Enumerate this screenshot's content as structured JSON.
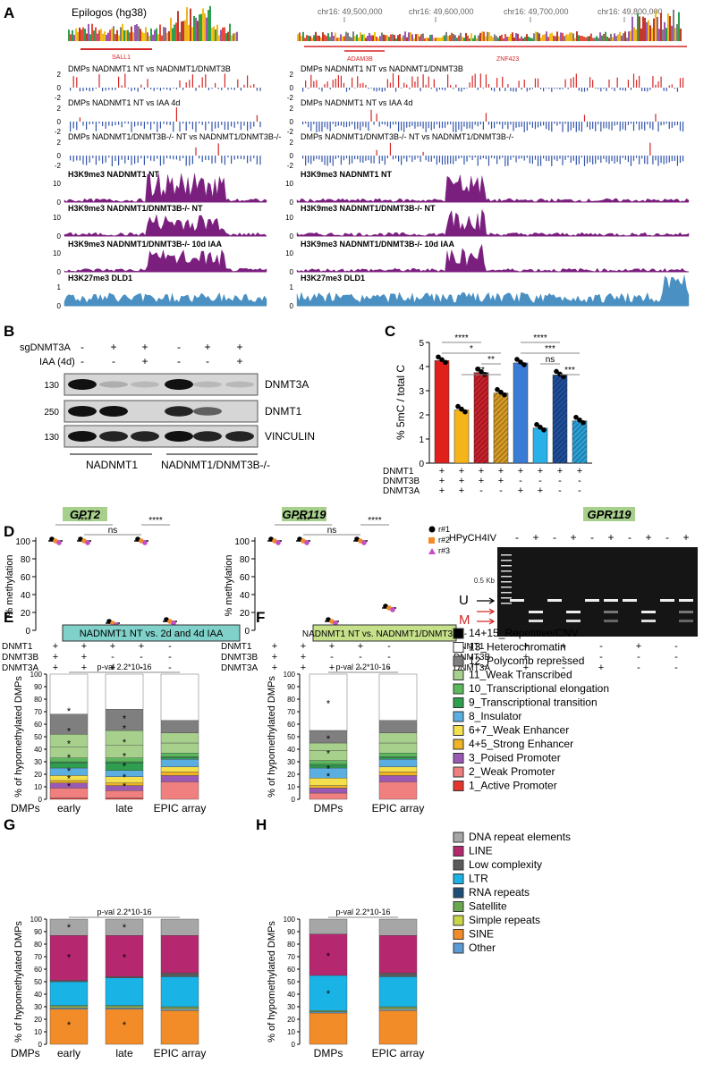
{
  "panel_letters": [
    "A",
    "B",
    "C",
    "D",
    "E",
    "F",
    "G",
    "H"
  ],
  "panelA": {
    "left_title": "Epilogos (hg38)",
    "left_gene": "SALL1",
    "right_genes": [
      "ADAM3B",
      "ZNF423"
    ],
    "coords": [
      "chr16: 49,500,000",
      "chr16: 49,600,000",
      "chr16: 49,700,000",
      "chr16: 49,800,000"
    ],
    "y_ticks": [
      "2",
      "0",
      "-2"
    ],
    "y_one": "1",
    "tracks": [
      {
        "label": "DMPs NADNMT1 NT vs NADNMT1/DNMT3B",
        "color": "#d62728"
      },
      {
        "label": "DMPs NADNMT1 NT vs IAA 4d",
        "color": "#3355aa"
      },
      {
        "label": "DMPs NADNMT1/DNMT3B-/- NT vs NADNMT1/DNMT3B-/-",
        "color": "#3355aa"
      },
      {
        "label": "H3K9me3 NADNMT1 NT",
        "color": "#7b1f7f"
      },
      {
        "label": "H3K9me3 NADNMT1/DNMT3B-/- NT",
        "color": "#7b1f7f"
      },
      {
        "label": "H3K9me3 NADNMT1/DNMT3B-/- 10d IAA",
        "color": "#7b1f7f"
      },
      {
        "label": "H3K27me3 DLD1",
        "color": "#4a90c2"
      }
    ]
  },
  "panelB": {
    "row1_label": "sgDNMT3A",
    "row2_label": "IAA (4d)",
    "row1_signs": [
      "-",
      "+",
      "+",
      "-",
      "+",
      "+"
    ],
    "row2_signs": [
      "-",
      "-",
      "+",
      "-",
      "-",
      "+"
    ],
    "bands": [
      "DNMT3A",
      "DNMT1",
      "VINCULIN"
    ],
    "mw": [
      "130",
      "250",
      "130"
    ],
    "group1": "NADNMT1",
    "group2": "NADNMT1/DNMT3B-/-"
  },
  "panelC": {
    "chart_data": {
      "type": "bar",
      "ylabel": "% 5mC / total C",
      "ylim": [
        0,
        5
      ],
      "yticks": [
        "0",
        "1",
        "2",
        "3",
        "4",
        "5"
      ],
      "values": [
        4.25,
        2.2,
        3.75,
        2.9,
        4.15,
        1.45,
        3.65,
        1.75
      ],
      "colors": [
        "#e0201b",
        "#f5b41a",
        "#c8202a",
        "#d49a24",
        "#3a7bd5",
        "#2ab0e8",
        "#1f4e9a",
        "#2a9fd6"
      ],
      "hatched": [
        false,
        false,
        true,
        true,
        false,
        false,
        true,
        true
      ],
      "rows": [
        {
          "name": "DNMT1",
          "signs": [
            "+",
            "+",
            "+",
            "+",
            "+",
            "+",
            "+",
            "+"
          ]
        },
        {
          "name": "DNMT3B",
          "signs": [
            "+",
            "+",
            "+",
            "+",
            "-",
            "-",
            "-",
            "-"
          ]
        },
        {
          "name": "DNMT3A",
          "signs": [
            "+",
            "+",
            "-",
            "-",
            "+",
            "+",
            "-",
            "-"
          ]
        }
      ],
      "significance": [
        "****",
        "*",
        "**",
        "**",
        "****",
        "***",
        "ns",
        "***"
      ]
    }
  },
  "panelD": {
    "gpt2": {
      "title": "GPT2",
      "chart_data": {
        "type": "scatter",
        "ylabel": "% methylation",
        "ylim": [
          0,
          100
        ],
        "yticks": [
          "0",
          "20",
          "40",
          "60",
          "80",
          "100"
        ],
        "values": [
          100,
          100,
          8,
          100,
          10
        ],
        "significance": [
          "****",
          "ns",
          "****"
        ]
      }
    },
    "gpr119": {
      "title": "GPR119",
      "chart_data": {
        "type": "scatter",
        "ylabel": "% methylation",
        "ylim": [
          0,
          100
        ],
        "yticks": [
          "0",
          "20",
          "40",
          "60",
          "80",
          "100"
        ],
        "values": [
          100,
          100,
          10,
          100,
          25
        ],
        "significance": [
          "****",
          "ns",
          "****"
        ]
      }
    },
    "legend": [
      "r#1",
      "r#2",
      "r#3"
    ],
    "row_names": [
      "DNMT1",
      "DNMT3B",
      "DNMT3A"
    ],
    "row_signs": [
      [
        "+",
        "+",
        "+",
        "+",
        "-"
      ],
      [
        "+",
        "+",
        "-",
        "-",
        "-"
      ],
      [
        "+",
        "+",
        "+",
        "-",
        "-"
      ]
    ],
    "gel": {
      "title": "GPR119",
      "enzyme": "HPyCH4IV",
      "enzyme_signs": [
        "-",
        "+",
        "-",
        "+",
        "-",
        "+",
        "-",
        "+",
        "-",
        "+"
      ],
      "size": "0.5 Kb",
      "U": "U",
      "M": "M",
      "row_names": [
        "DNMT1",
        "DNMT3B",
        "DNMT3A"
      ],
      "row_signs": [
        [
          "+",
          "+",
          "-",
          "+",
          "-"
        ],
        [
          "+",
          "-",
          "-",
          "-",
          "-"
        ],
        [
          "+",
          "-",
          "+",
          "-",
          "-"
        ]
      ]
    }
  },
  "panelE": {
    "header": "NADNMT1 NT vs. 2d and 4d IAA",
    "pval": "p-val 2.2*10-16",
    "ylabel": "% of hypomethylated DMPs",
    "xlabel_prefix": "DMPs",
    "chart_data": {
      "type": "bar",
      "stacked": true,
      "categories": [
        "early",
        "late",
        "EPIC array"
      ],
      "series": [
        [
          1,
          8,
          4,
          2,
          4,
          6,
          4,
          0,
          1,
          3,
          9,
          10,
          16,
          32
        ],
        [
          1,
          6,
          4,
          2,
          5,
          5,
          6,
          0,
          1,
          3,
          10,
          12,
          17,
          28
        ],
        [
          0,
          14,
          5,
          3,
          4,
          6,
          1,
          0,
          1,
          3,
          8,
          8,
          10,
          37
        ]
      ]
    }
  },
  "panelF": {
    "header": "NADNMT1 NT vs. NADNMT1/DNMT3B-/-",
    "pval": "p-val 2.2*10-16",
    "ylabel": "% of hypomethylated DMPs",
    "chart_data": {
      "type": "bar",
      "stacked": true,
      "categories": [
        "DMPs",
        "EPIC array"
      ],
      "series": [
        [
          0,
          5,
          4,
          2,
          6,
          8,
          2,
          0,
          1,
          3,
          8,
          6,
          10,
          45
        ],
        [
          0,
          14,
          5,
          3,
          4,
          6,
          1,
          0,
          1,
          3,
          8,
          8,
          10,
          37
        ]
      ]
    }
  },
  "chromatin_legend": [
    {
      "label": "14+15_Repetitive/CNV",
      "color": "#000000"
    },
    {
      "label": "13_Heterochromatin",
      "color": "#ffffff"
    },
    {
      "label": "12_Polycomb repressed",
      "color": "#7f7f7f"
    },
    {
      "label": "11_Weak Transcribed",
      "color": "#a8d08d"
    },
    {
      "label": "10_Transcriptional elongation",
      "color": "#5cb85c"
    },
    {
      "label": "9_Transcriptional transition",
      "color": "#2e9e4f"
    },
    {
      "label": "8_Insulator",
      "color": "#5aaee0"
    },
    {
      "label": "6+7_Weak Enhancer",
      "color": "#f4e04d"
    },
    {
      "label": "4+5_Strong Enhancer",
      "color": "#f0b323"
    },
    {
      "label": "3_Poised Promoter",
      "color": "#9b59b6"
    },
    {
      "label": "2_Weak Promoter",
      "color": "#f08080"
    },
    {
      "label": "1_Active Promoter",
      "color": "#e8352b"
    }
  ],
  "panelG": {
    "pval": "p-val 2.2*10-16",
    "ylabel": "% of hypomethylated DMPs",
    "chart_data": {
      "type": "bar",
      "stacked": true,
      "categories": [
        "early",
        "late",
        "EPIC array"
      ],
      "series": [
        [
          28,
          1,
          1,
          1,
          0,
          19,
          1,
          36,
          13
        ],
        [
          28,
          1,
          1,
          1,
          0,
          22,
          1,
          33,
          13
        ],
        [
          27,
          1,
          1,
          1,
          0,
          24,
          3,
          30,
          13
        ]
      ]
    }
  },
  "panelH": {
    "pval": "p-val 2.2*10-16",
    "ylabel": "% of hypomethylated DMPs",
    "chart_data": {
      "type": "bar",
      "stacked": true,
      "categories": [
        "DMPs",
        "EPIC array"
      ],
      "series": [
        [
          25,
          1,
          0,
          1,
          0,
          28,
          0,
          33,
          12
        ],
        [
          27,
          1,
          1,
          1,
          0,
          24,
          3,
          30,
          13
        ]
      ]
    }
  },
  "repeat_legend": [
    {
      "label": "DNA repeat elements",
      "color": "#a6a6a6"
    },
    {
      "label": "LINE",
      "color": "#b5276e"
    },
    {
      "label": "Low complexity",
      "color": "#5a5a5a"
    },
    {
      "label": "LTR",
      "color": "#19b3e6"
    },
    {
      "label": "RNA repeats",
      "color": "#1f4e79"
    },
    {
      "label": "Satellite",
      "color": "#6aa84f"
    },
    {
      "label": "Simple repeats",
      "color": "#c9d646"
    },
    {
      "label": "SINE",
      "color": "#f28c28"
    },
    {
      "label": "Other",
      "color": "#5b9bd5"
    }
  ]
}
